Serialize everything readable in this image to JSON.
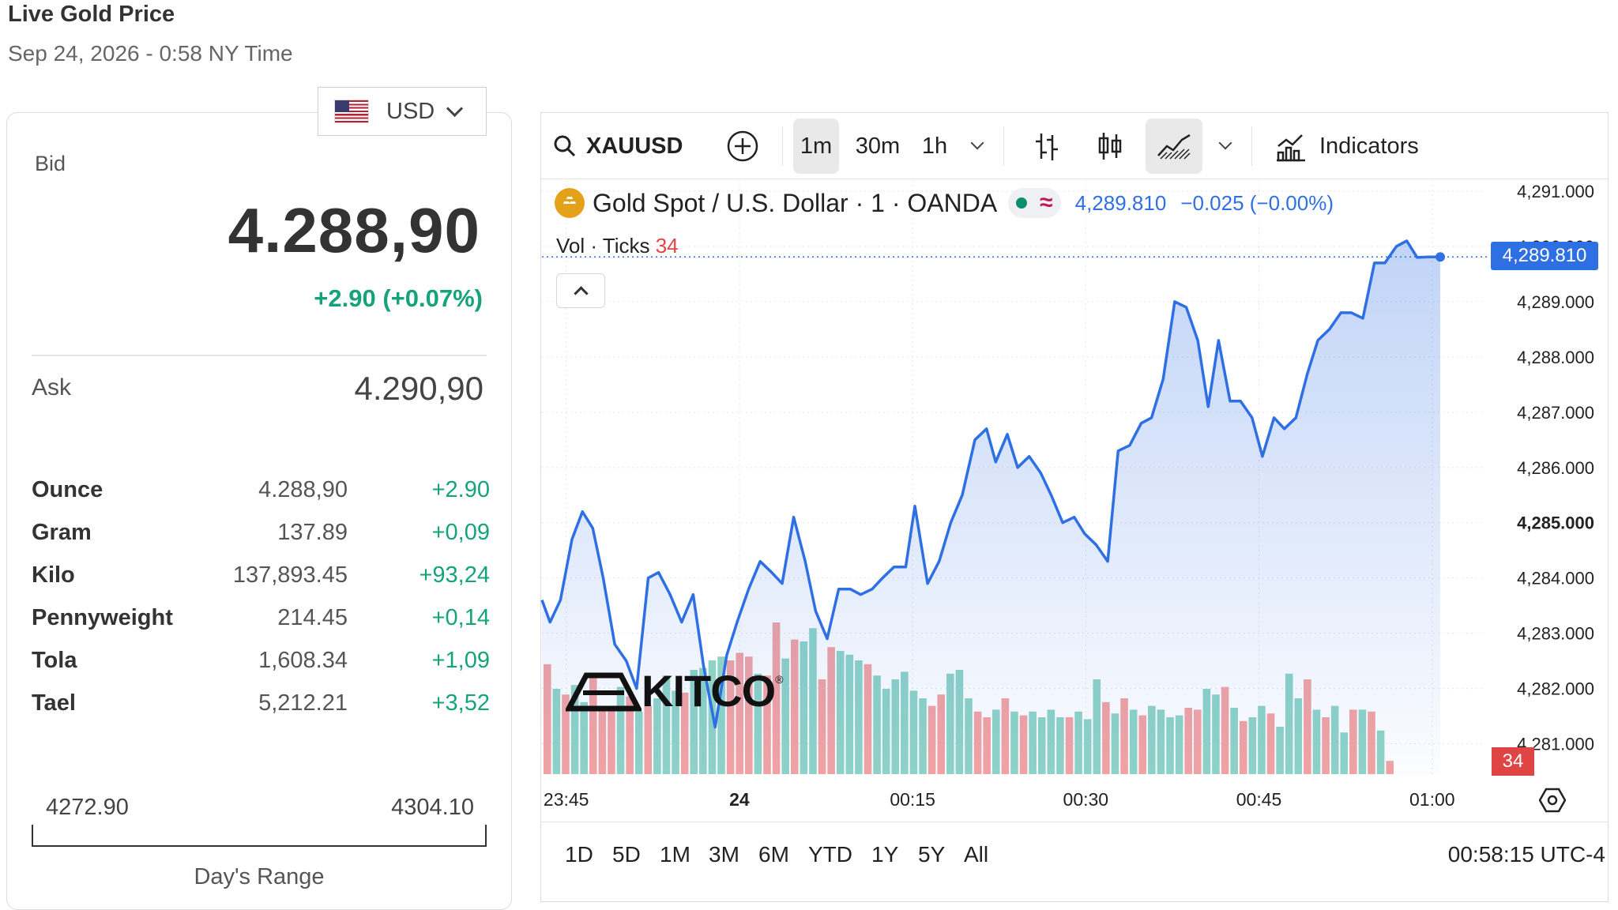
{
  "page": {
    "title": "Live Gold Price",
    "subtitle": "Sep 24, 2026 - 0:58 NY Time"
  },
  "currency": {
    "label": "USD",
    "flag": "us-flag-icon"
  },
  "quote": {
    "bid_label": "Bid",
    "bid": "4.288,90",
    "change": "+2.90 (+0.07%)",
    "ask_label": "Ask",
    "ask": "4.290,90"
  },
  "units": [
    {
      "name": "Ounce",
      "price": "4.288,90",
      "change": "+2.90"
    },
    {
      "name": "Gram",
      "price": "137.89",
      "change": "+0,09"
    },
    {
      "name": "Kilo",
      "price": "137,893.45",
      "change": "+93,24"
    },
    {
      "name": "Pennyweight",
      "price": "214.45",
      "change": "+0,14"
    },
    {
      "name": "Tola",
      "price": "1,608.34",
      "change": "+1,09"
    },
    {
      "name": "Tael",
      "price": "5,212.21",
      "change": "+3,52"
    }
  ],
  "day_range": {
    "low": "4272.90",
    "high": "4304.10",
    "label": "Day's Range"
  },
  "toolbar": {
    "symbol": "XAUUSD",
    "intervals": [
      "1m",
      "30m",
      "1h"
    ],
    "active_interval": "1m",
    "indicators_label": "Indicators"
  },
  "legend": {
    "name": "Gold Spot / U.S. Dollar · 1 · OANDA",
    "price": "4,289.810",
    "change": "−0.025 (−0.00%)",
    "vol_label": "Vol · Ticks",
    "vol_value": "34"
  },
  "price_tag": "4,289.810",
  "vol_tag": "34",
  "brand": "KITCO",
  "ranges": [
    "1D",
    "5D",
    "1M",
    "3M",
    "6M",
    "YTD",
    "1Y",
    "5Y",
    "All"
  ],
  "clock": "00:58:15 UTC-4",
  "colors": {
    "line": "#2f6fe4",
    "vol_up": "#8fd3c7",
    "vol_down": "#f3a3a3",
    "positive": "#16a37a",
    "negative": "#e04545"
  },
  "chart_data": {
    "type": "area",
    "title": "Gold Spot / U.S. Dollar · 1 · OANDA",
    "x_ticks": [
      "23:45",
      "24",
      "00:15",
      "00:30",
      "00:45",
      "01:00"
    ],
    "y_ticks": [
      "4,291.000",
      "4,290.000",
      "4,289.000",
      "4,288.000",
      "4,287.000",
      "4,286.000",
      "4,285.000",
      "4,284.000",
      "4,283.000",
      "4,282.000",
      "4,281.000"
    ],
    "ylim": [
      4280.45,
      4291.2
    ],
    "x_range_minutes": [
      -17.1,
      64.6
    ],
    "grid": true,
    "series": [
      {
        "values": [
          [
            -17.1,
            4283.6
          ],
          [
            -16.4,
            4283.2
          ],
          [
            -15.5,
            4283.6
          ],
          [
            -14.5,
            4284.7
          ],
          [
            -13.6,
            4285.2
          ],
          [
            -12.7,
            4284.9
          ],
          [
            -11.8,
            4284.0
          ],
          [
            -10.8,
            4282.8
          ],
          [
            -9.8,
            4282.5
          ],
          [
            -8.9,
            4282.0
          ],
          [
            -7.9,
            4284.0
          ],
          [
            -7.0,
            4284.1
          ],
          [
            -6.0,
            4283.7
          ],
          [
            -5.0,
            4283.2
          ],
          [
            -4.0,
            4283.7
          ],
          [
            -3.1,
            4282.4
          ],
          [
            -2.1,
            4281.3
          ],
          [
            -1.1,
            4282.6
          ],
          [
            -0.2,
            4283.2
          ],
          [
            0.8,
            4283.8
          ],
          [
            1.8,
            4284.3
          ],
          [
            2.8,
            4284.1
          ],
          [
            3.7,
            4283.9
          ],
          [
            4.7,
            4285.1
          ],
          [
            5.7,
            4284.3
          ],
          [
            6.6,
            4283.4
          ],
          [
            7.6,
            4282.9
          ],
          [
            8.6,
            4283.8
          ],
          [
            9.6,
            4283.8
          ],
          [
            10.5,
            4283.7
          ],
          [
            11.5,
            4283.8
          ],
          [
            12.4,
            4284.0
          ],
          [
            13.4,
            4284.2
          ],
          [
            14.4,
            4284.2
          ],
          [
            15.2,
            4285.3
          ],
          [
            16.3,
            4283.9
          ],
          [
            17.3,
            4284.3
          ],
          [
            18.3,
            4285.0
          ],
          [
            19.3,
            4285.5
          ],
          [
            20.4,
            4286.5
          ],
          [
            21.4,
            4286.7
          ],
          [
            22.2,
            4286.1
          ],
          [
            23.2,
            4286.6
          ],
          [
            24.1,
            4286.0
          ],
          [
            25.1,
            4286.2
          ],
          [
            26.1,
            4285.9
          ],
          [
            27.0,
            4285.5
          ],
          [
            28.0,
            4285.0
          ],
          [
            29.0,
            4285.1
          ],
          [
            29.9,
            4284.8
          ],
          [
            30.9,
            4284.6
          ],
          [
            31.9,
            4284.3
          ],
          [
            32.8,
            4286.3
          ],
          [
            33.8,
            4286.4
          ],
          [
            34.8,
            4286.8
          ],
          [
            35.7,
            4286.9
          ],
          [
            36.7,
            4287.6
          ],
          [
            37.7,
            4289.0
          ],
          [
            38.7,
            4288.9
          ],
          [
            39.7,
            4288.3
          ],
          [
            40.6,
            4287.1
          ],
          [
            41.5,
            4288.3
          ],
          [
            42.5,
            4287.2
          ],
          [
            43.4,
            4287.2
          ],
          [
            44.4,
            4286.9
          ],
          [
            45.3,
            4286.2
          ],
          [
            46.3,
            4286.9
          ],
          [
            47.2,
            4286.7
          ],
          [
            48.2,
            4286.9
          ],
          [
            49.2,
            4287.7
          ],
          [
            50.1,
            4288.3
          ],
          [
            51.1,
            4288.5
          ],
          [
            52.1,
            4288.8
          ],
          [
            53.0,
            4288.8
          ],
          [
            54.0,
            4288.7
          ],
          [
            55.0,
            4289.7
          ],
          [
            55.9,
            4289.7
          ],
          [
            56.9,
            4290.0
          ],
          [
            57.8,
            4290.1
          ],
          [
            58.7,
            4289.8
          ],
          [
            59.7,
            4289.81
          ],
          [
            60.7,
            4289.81
          ]
        ]
      }
    ],
    "volume": [
      [
        "d",
        0.58
      ],
      [
        "u",
        0.45
      ],
      [
        "d",
        0.42
      ],
      [
        "u",
        0.47
      ],
      [
        "u",
        0.38
      ],
      [
        "d",
        0.52
      ],
      [
        "d",
        0.36
      ],
      [
        "d",
        0.36
      ],
      [
        "u",
        0.46
      ],
      [
        "d",
        0.41
      ],
      [
        "u",
        0.33
      ],
      [
        "d",
        0.36
      ],
      [
        "u",
        0.4
      ],
      [
        "u",
        0.52
      ],
      [
        "u",
        0.44
      ],
      [
        "d",
        0.43
      ],
      [
        "u",
        0.55
      ],
      [
        "u",
        0.56
      ],
      [
        "u",
        0.6
      ],
      [
        "u",
        0.62
      ],
      [
        "d",
        0.6
      ],
      [
        "d",
        0.64
      ],
      [
        "d",
        0.62
      ],
      [
        "u",
        0.53
      ],
      [
        "d",
        0.52
      ],
      [
        "d",
        0.8
      ],
      [
        "u",
        0.61
      ],
      [
        "d",
        0.71
      ],
      [
        "u",
        0.7
      ],
      [
        "u",
        0.77
      ],
      [
        "d",
        0.5
      ],
      [
        "d",
        0.67
      ],
      [
        "u",
        0.65
      ],
      [
        "u",
        0.63
      ],
      [
        "u",
        0.6
      ],
      [
        "d",
        0.58
      ],
      [
        "u",
        0.52
      ],
      [
        "u",
        0.45
      ],
      [
        "u",
        0.5
      ],
      [
        "u",
        0.54
      ],
      [
        "u",
        0.44
      ],
      [
        "u",
        0.4
      ],
      [
        "d",
        0.36
      ],
      [
        "d",
        0.42
      ],
      [
        "u",
        0.53
      ],
      [
        "u",
        0.55
      ],
      [
        "u",
        0.4
      ],
      [
        "d",
        0.33
      ],
      [
        "d",
        0.3
      ],
      [
        "u",
        0.34
      ],
      [
        "d",
        0.4
      ],
      [
        "u",
        0.33
      ],
      [
        "d",
        0.31
      ],
      [
        "u",
        0.33
      ],
      [
        "u",
        0.3
      ],
      [
        "u",
        0.34
      ],
      [
        "u",
        0.3
      ],
      [
        "d",
        0.3
      ],
      [
        "u",
        0.33
      ],
      [
        "u",
        0.29
      ],
      [
        "u",
        0.5
      ],
      [
        "d",
        0.38
      ],
      [
        "u",
        0.32
      ],
      [
        "d",
        0.4
      ],
      [
        "u",
        0.34
      ],
      [
        "d",
        0.31
      ],
      [
        "u",
        0.36
      ],
      [
        "u",
        0.34
      ],
      [
        "u",
        0.3
      ],
      [
        "u",
        0.31
      ],
      [
        "d",
        0.35
      ],
      [
        "d",
        0.34
      ],
      [
        "u",
        0.45
      ],
      [
        "u",
        0.42
      ],
      [
        "d",
        0.46
      ],
      [
        "u",
        0.35
      ],
      [
        "d",
        0.28
      ],
      [
        "u",
        0.3
      ],
      [
        "u",
        0.36
      ],
      [
        "d",
        0.32
      ],
      [
        "u",
        0.25
      ],
      [
        "u",
        0.53
      ],
      [
        "u",
        0.4
      ],
      [
        "d",
        0.5
      ],
      [
        "u",
        0.34
      ],
      [
        "d",
        0.3
      ],
      [
        "u",
        0.36
      ],
      [
        "u",
        0.22
      ],
      [
        "d",
        0.34
      ],
      [
        "u",
        0.34
      ],
      [
        "d",
        0.33
      ],
      [
        "u",
        0.23
      ],
      [
        "d",
        0.07
      ]
    ]
  }
}
